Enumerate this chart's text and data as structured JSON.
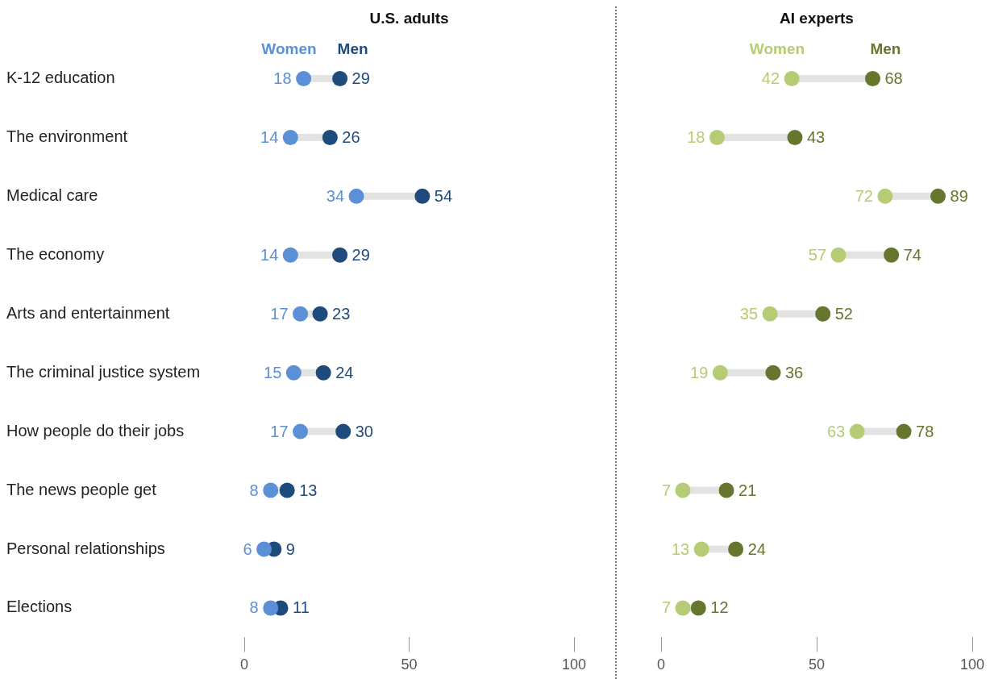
{
  "chart_data": [
    {
      "type": "scatter",
      "orientation": "horizontal",
      "title": "U.S. adults",
      "categories": [
        "K-12 education",
        "The environment",
        "Medical care",
        "The economy",
        "Arts and entertainment",
        "The criminal justice system",
        "How people do their jobs",
        "The news people get",
        "Personal relationships",
        "Elections"
      ],
      "series": [
        {
          "name": "Women",
          "color": "#5b8fd6",
          "values": [
            18,
            14,
            34,
            14,
            17,
            15,
            17,
            8,
            6,
            8
          ]
        },
        {
          "name": "Men",
          "color": "#1f4a7c",
          "values": [
            29,
            26,
            54,
            29,
            23,
            24,
            30,
            13,
            9,
            11
          ]
        }
      ],
      "xlim": [
        0,
        100
      ],
      "xticks": [
        0,
        50,
        100
      ],
      "legend": "top",
      "data_labels": true,
      "marker": "circle"
    },
    {
      "type": "scatter",
      "orientation": "horizontal",
      "title": "AI experts",
      "series": [
        {
          "name": "Women",
          "color": "#b5cc74",
          "values": [
            42,
            18,
            72,
            57,
            35,
            19,
            63,
            7,
            13,
            7
          ]
        },
        {
          "name": "Men",
          "color": "#66762e",
          "values": [
            68,
            43,
            89,
            74,
            52,
            36,
            78,
            21,
            24,
            12
          ]
        }
      ],
      "xlim": [
        0,
        100
      ],
      "xticks": [
        0,
        50,
        100
      ],
      "legend": "top",
      "data_labels": true,
      "marker": "circle",
      "tick_labels": "x"
    }
  ]
}
